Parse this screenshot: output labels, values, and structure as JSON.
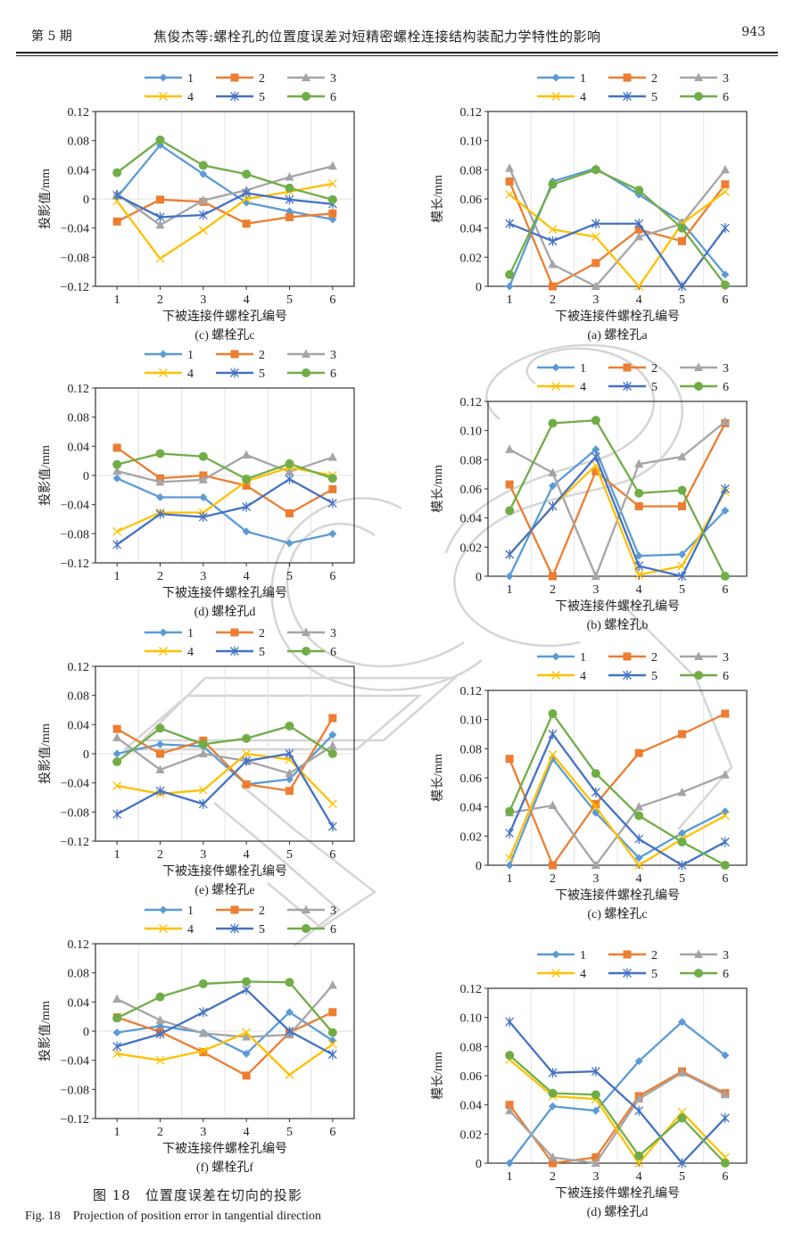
{
  "header": {
    "issue": "第 5 期",
    "title": "焦俊杰等:螺栓孔的位置度误差对短精密螺栓连接结构装配力学特性的影响",
    "page": "943"
  },
  "figure": {
    "caption_cn": "图 18　位置度误差在切向的投影",
    "caption_en_label": "Fig. 18",
    "caption_en": "Projection of position error in tangential direction"
  },
  "legend_colors": {
    "1": "#5b9bd5",
    "2": "#ed7d31",
    "3": "#a5a5a5",
    "4": "#ffc000",
    "5": "#4472c4",
    "6": "#70ad47"
  },
  "chart_data": [
    {
      "id": "left-c",
      "type": "line",
      "caption": "(c) 螺栓孔c",
      "xlabel": "下被连接件螺栓孔编号",
      "ylabel": "投影值/mm",
      "x": [
        1,
        2,
        3,
        4,
        5,
        6
      ],
      "ylim": [
        -0.12,
        0.12
      ],
      "yticks": [
        "0.12",
        "0.08",
        "0.04",
        "0",
        "−0.04",
        "−0.08",
        "−0.12"
      ],
      "ytick_values": [
        0.12,
        0.08,
        0.04,
        0,
        -0.04,
        -0.08,
        -0.12
      ],
      "legend": "top",
      "series": [
        {
          "name": "1",
          "values": [
            0.002,
            0.074,
            0.034,
            -0.005,
            -0.017,
            -0.028
          ]
        },
        {
          "name": "2",
          "values": [
            -0.031,
            -0.001,
            -0.004,
            -0.034,
            -0.025,
            -0.02
          ]
        },
        {
          "name": "3",
          "values": [
            0.007,
            -0.036,
            -0.002,
            0.012,
            0.03,
            0.045
          ]
        },
        {
          "name": "4",
          "values": [
            -0.003,
            -0.082,
            -0.043,
            0.0,
            0.01,
            0.021
          ]
        },
        {
          "name": "5",
          "values": [
            0.005,
            -0.025,
            -0.022,
            0.008,
            -0.001,
            -0.007
          ]
        },
        {
          "name": "6",
          "values": [
            0.036,
            0.081,
            0.046,
            0.034,
            0.015,
            -0.001
          ]
        }
      ]
    },
    {
      "id": "right-a",
      "type": "line",
      "caption": "(a) 螺栓孔a",
      "xlabel": "下被连接件螺栓孔编号",
      "ylabel": "模长/mm",
      "x": [
        1,
        2,
        3,
        4,
        5,
        6
      ],
      "ylim": [
        0,
        0.12
      ],
      "yticks": [
        "0.12",
        "0.10",
        "0.08",
        "0.06",
        "0.04",
        "0.02",
        "0"
      ],
      "ytick_values": [
        0.12,
        0.1,
        0.08,
        0.06,
        0.04,
        0.02,
        0
      ],
      "legend": "top",
      "series": [
        {
          "name": "1",
          "values": [
            0.0,
            0.072,
            0.081,
            0.063,
            0.044,
            0.008
          ]
        },
        {
          "name": "2",
          "values": [
            0.072,
            0.0,
            0.016,
            0.039,
            0.031,
            0.07
          ]
        },
        {
          "name": "3",
          "values": [
            0.081,
            0.015,
            0.0,
            0.034,
            0.043,
            0.08
          ]
        },
        {
          "name": "4",
          "values": [
            0.063,
            0.039,
            0.034,
            0.0,
            0.043,
            0.065
          ]
        },
        {
          "name": "5",
          "values": [
            0.043,
            0.031,
            0.043,
            0.043,
            0.0,
            0.04
          ]
        },
        {
          "name": "6",
          "values": [
            0.008,
            0.07,
            0.08,
            0.066,
            0.04,
            0.001
          ]
        }
      ]
    },
    {
      "id": "left-d",
      "type": "line",
      "caption": "(d) 螺栓孔d",
      "xlabel": "下被连接件螺栓孔编号",
      "ylabel": "投影值/mm",
      "x": [
        1,
        2,
        3,
        4,
        5,
        6
      ],
      "ylim": [
        -0.12,
        0.12
      ],
      "yticks": [
        "0.12",
        "0.08",
        "0.04",
        "0",
        "−0.04",
        "−0.08",
        "−0.12"
      ],
      "ytick_values": [
        0.12,
        0.08,
        0.04,
        0,
        -0.04,
        -0.08,
        -0.12
      ],
      "legend": "top",
      "series": [
        {
          "name": "1",
          "values": [
            -0.004,
            -0.03,
            -0.03,
            -0.077,
            -0.093,
            -0.08
          ]
        },
        {
          "name": "2",
          "values": [
            0.038,
            -0.004,
            0.0,
            -0.014,
            -0.052,
            -0.019
          ]
        },
        {
          "name": "3",
          "values": [
            0.006,
            -0.009,
            -0.006,
            0.028,
            0.005,
            0.025
          ]
        },
        {
          "name": "4",
          "values": [
            -0.077,
            -0.051,
            -0.051,
            -0.008,
            0.011,
            0.0
          ]
        },
        {
          "name": "5",
          "values": [
            -0.095,
            -0.053,
            -0.057,
            -0.043,
            -0.005,
            -0.038
          ]
        },
        {
          "name": "6",
          "values": [
            0.015,
            0.03,
            0.026,
            -0.005,
            0.016,
            -0.004
          ]
        }
      ]
    },
    {
      "id": "right-b",
      "type": "line",
      "caption": "(b) 螺栓孔b",
      "xlabel": "下被连接件螺栓孔编号",
      "ylabel": "模长/mm",
      "x": [
        1,
        2,
        3,
        4,
        5,
        6
      ],
      "ylim": [
        0,
        0.12
      ],
      "yticks": [
        "0.12",
        "0.10",
        "0.08",
        "0.06",
        "0.04",
        "0.02",
        "0"
      ],
      "ytick_values": [
        0.12,
        0.1,
        0.08,
        0.06,
        0.04,
        0.02,
        0
      ],
      "legend": "top",
      "series": [
        {
          "name": "1",
          "values": [
            0.0,
            0.062,
            0.087,
            0.014,
            0.015,
            0.045
          ]
        },
        {
          "name": "2",
          "values": [
            0.063,
            0.0,
            0.072,
            0.048,
            0.048,
            0.105
          ]
        },
        {
          "name": "3",
          "values": [
            0.087,
            0.071,
            0.0,
            0.077,
            0.082,
            0.106
          ]
        },
        {
          "name": "4",
          "values": [
            0.015,
            0.048,
            0.076,
            0.001,
            0.007,
            0.058
          ]
        },
        {
          "name": "5",
          "values": [
            0.015,
            0.048,
            0.082,
            0.007,
            0.0,
            0.06
          ]
        },
        {
          "name": "6",
          "values": [
            0.045,
            0.105,
            0.107,
            0.057,
            0.059,
            0.0
          ]
        }
      ]
    },
    {
      "id": "left-e",
      "type": "line",
      "caption": "(e) 螺栓孔e",
      "xlabel": "下被连接件螺栓孔编号",
      "ylabel": "投影值/mm",
      "x": [
        1,
        2,
        3,
        4,
        5,
        6
      ],
      "ylim": [
        -0.12,
        0.12
      ],
      "yticks": [
        "0.12",
        "0.08",
        "0.04",
        "0",
        "−0.04",
        "−0.08",
        "−0.12"
      ],
      "ytick_values": [
        0.12,
        0.08,
        0.04,
        0,
        -0.04,
        -0.08,
        -0.12
      ],
      "legend": "top",
      "series": [
        {
          "name": "1",
          "values": [
            0.0,
            0.013,
            0.01,
            -0.042,
            -0.035,
            0.026
          ]
        },
        {
          "name": "2",
          "values": [
            0.034,
            0.0,
            0.018,
            -0.042,
            -0.051,
            0.049
          ]
        },
        {
          "name": "3",
          "values": [
            0.022,
            -0.022,
            0.0,
            -0.01,
            -0.027,
            0.011
          ]
        },
        {
          "name": "4",
          "values": [
            -0.044,
            -0.055,
            -0.05,
            0.0,
            -0.008,
            -0.069
          ]
        },
        {
          "name": "5",
          "values": [
            -0.083,
            -0.051,
            -0.069,
            -0.01,
            0.0,
            -0.1
          ]
        },
        {
          "name": "6",
          "values": [
            -0.011,
            0.035,
            0.013,
            0.021,
            0.038,
            0.0
          ]
        }
      ]
    },
    {
      "id": "right-c",
      "type": "line",
      "caption": "(c) 螺栓孔c",
      "xlabel": "下被连接件螺栓孔编号",
      "ylabel": "模长/mm",
      "x": [
        1,
        2,
        3,
        4,
        5,
        6
      ],
      "ylim": [
        0,
        0.12
      ],
      "yticks": [
        "0.12",
        "0.10",
        "0.08",
        "0.06",
        "0.04",
        "0.02",
        "0"
      ],
      "ytick_values": [
        0.12,
        0.1,
        0.08,
        0.06,
        0.04,
        0.02,
        0
      ],
      "legend": "top",
      "series": [
        {
          "name": "1",
          "values": [
            0.0,
            0.073,
            0.036,
            0.005,
            0.022,
            0.037
          ]
        },
        {
          "name": "2",
          "values": [
            0.073,
            0.0,
            0.042,
            0.077,
            0.09,
            0.104
          ]
        },
        {
          "name": "3",
          "values": [
            0.036,
            0.041,
            0.0,
            0.04,
            0.05,
            0.062
          ]
        },
        {
          "name": "4",
          "values": [
            0.005,
            0.076,
            0.04,
            0.0,
            0.018,
            0.034
          ]
        },
        {
          "name": "5",
          "values": [
            0.022,
            0.09,
            0.05,
            0.018,
            0.0,
            0.016
          ]
        },
        {
          "name": "6",
          "values": [
            0.037,
            0.104,
            0.063,
            0.034,
            0.016,
            0.0
          ]
        }
      ]
    },
    {
      "id": "left-f",
      "type": "line",
      "caption": "(f) 螺栓孔f",
      "xlabel": "下被连接件螺栓孔编号",
      "ylabel": "投影值/mm",
      "x": [
        1,
        2,
        3,
        4,
        5,
        6
      ],
      "ylim": [
        -0.12,
        0.12
      ],
      "yticks": [
        "0.12",
        "0.08",
        "0.04",
        "0",
        "−0.04",
        "−0.08",
        "−0.12"
      ],
      "ytick_values": [
        0.12,
        0.08,
        0.04,
        0,
        -0.04,
        -0.08,
        -0.12
      ],
      "legend": "top",
      "series": [
        {
          "name": "1",
          "values": [
            -0.002,
            0.007,
            -0.002,
            -0.031,
            0.026,
            -0.013
          ]
        },
        {
          "name": "2",
          "values": [
            0.019,
            -0.001,
            -0.029,
            -0.061,
            -0.002,
            0.026
          ]
        },
        {
          "name": "3",
          "values": [
            0.044,
            0.015,
            -0.003,
            -0.008,
            -0.005,
            0.063
          ]
        },
        {
          "name": "4",
          "values": [
            -0.031,
            -0.04,
            -0.027,
            -0.002,
            -0.06,
            -0.018
          ]
        },
        {
          "name": "5",
          "values": [
            -0.021,
            -0.004,
            0.026,
            0.057,
            0.0,
            -0.032
          ]
        },
        {
          "name": "6",
          "values": [
            0.018,
            0.047,
            0.065,
            0.068,
            0.067,
            -0.002
          ]
        }
      ]
    },
    {
      "id": "right-d",
      "type": "line",
      "caption": "(d) 螺栓孔d",
      "xlabel": "下被连接件螺栓孔编号",
      "ylabel": "模长/mm",
      "x": [
        1,
        2,
        3,
        4,
        5,
        6
      ],
      "ylim": [
        0,
        0.12
      ],
      "yticks": [
        "0.12",
        "0.10",
        "0.08",
        "0.06",
        "0.04",
        "0.02",
        "0"
      ],
      "ytick_values": [
        0.12,
        0.1,
        0.08,
        0.06,
        0.04,
        0.02,
        0
      ],
      "legend": "top",
      "series": [
        {
          "name": "1",
          "values": [
            0.0,
            0.039,
            0.036,
            0.07,
            0.097,
            0.074
          ]
        },
        {
          "name": "2",
          "values": [
            0.04,
            0.0,
            0.004,
            0.046,
            0.063,
            0.048
          ]
        },
        {
          "name": "3",
          "values": [
            0.036,
            0.004,
            0.0,
            0.044,
            0.062,
            0.047
          ]
        },
        {
          "name": "4",
          "values": [
            0.071,
            0.046,
            0.044,
            0.0,
            0.035,
            0.004
          ]
        },
        {
          "name": "5",
          "values": [
            0.097,
            0.062,
            0.063,
            0.036,
            0.0,
            0.031
          ]
        },
        {
          "name": "6",
          "values": [
            0.074,
            0.048,
            0.047,
            0.005,
            0.031,
            0.0
          ]
        }
      ]
    }
  ]
}
